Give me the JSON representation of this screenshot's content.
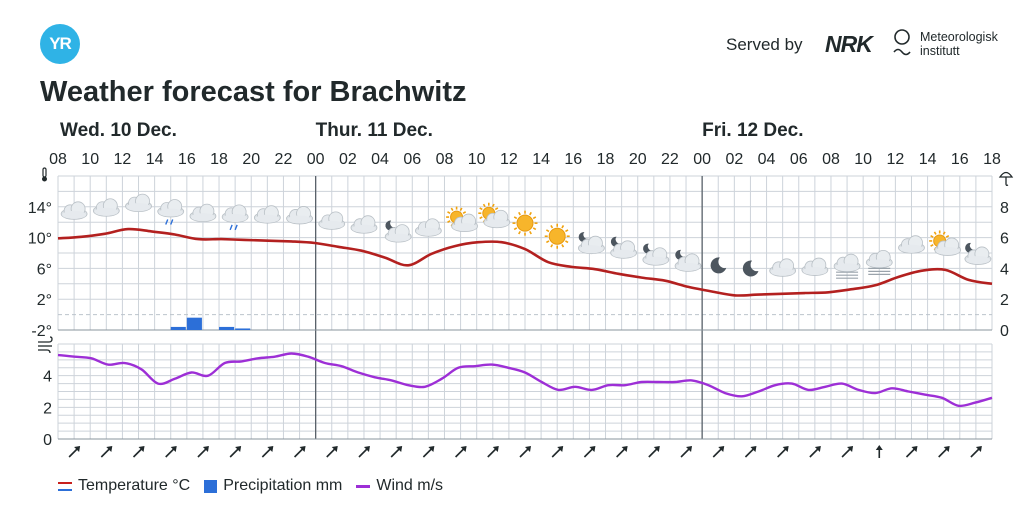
{
  "header": {
    "logo_text": "YR",
    "served_by": "Served by",
    "nrk_logo": "NRK",
    "met_line1": "Meteorologisk",
    "met_line2": "institutt"
  },
  "title": "Weather forecast for Brachwitz",
  "chart_data": {
    "type": "line",
    "days": [
      {
        "label": "Wed. 10 Dec.",
        "start_index": 0
      },
      {
        "label": "Thur. 11 Dec.",
        "start_index": 8
      },
      {
        "label": "Fri. 12 Dec.",
        "start_index": 20
      }
    ],
    "x_ticks": [
      "08",
      "10",
      "12",
      "14",
      "16",
      "18",
      "20",
      "22",
      "00",
      "02",
      "04",
      "06",
      "08",
      "10",
      "12",
      "14",
      "16",
      "18",
      "20",
      "22",
      "00",
      "02",
      "04",
      "06",
      "08",
      "10",
      "12",
      "14",
      "16",
      "18"
    ],
    "temp_ticks": [
      "14°",
      "10°",
      "6°",
      "2°",
      "-2°"
    ],
    "temp_ylim": [
      -2,
      18
    ],
    "precip_ticks": [
      "8",
      "6",
      "4",
      "2",
      "0"
    ],
    "precip_ylim": [
      0,
      10
    ],
    "wind_ticks": [
      "4",
      "2",
      "0"
    ],
    "wind_ylim": [
      0,
      6
    ],
    "temperature": [
      9.9,
      10.1,
      10.5,
      11.1,
      10.8,
      10.4,
      9.8,
      9.8,
      9.7,
      9.6,
      9.5,
      9.3,
      8.8,
      8.3,
      7.4,
      6.4,
      7.9,
      8.9,
      9.4,
      9.4,
      8.5,
      6.8,
      6.2,
      5.9,
      5.3,
      4.8,
      4.4,
      3.6,
      3.0,
      2.5,
      2.6,
      2.7,
      2.8,
      2.9,
      3.3,
      3.8,
      4.9,
      5.7,
      5.8,
      4.5,
      4.0
    ],
    "precipitation": [
      {
        "index": 3.5,
        "value": 0.2
      },
      {
        "index": 4.0,
        "value": 0.8
      },
      {
        "index": 5.0,
        "value": 0.2
      },
      {
        "index": 5.5,
        "value": 0.1
      }
    ],
    "wind": [
      5.3,
      5.2,
      5.1,
      4.7,
      4.8,
      4.4,
      3.5,
      3.8,
      4.2,
      4.0,
      4.8,
      4.9,
      5.1,
      5.2,
      5.4,
      5.2,
      4.8,
      4.6,
      4.2,
      3.9,
      3.7,
      3.4,
      3.3,
      3.8,
      4.5,
      4.6,
      4.7,
      4.5,
      4.2,
      3.6,
      3.1,
      3.3,
      3.1,
      3.4,
      3.4,
      3.6,
      3.6,
      3.6,
      3.7,
      3.4,
      2.9,
      2.7,
      3.0,
      3.4,
      3.5,
      3.1,
      3.3,
      3.5,
      3.1,
      2.9,
      3.2,
      3.0,
      2.8,
      2.6,
      2.1,
      2.3,
      2.6
    ],
    "weather_icons": [
      "cloudy",
      "cloudy",
      "cloudy",
      "cloudy-rain",
      "cloudy",
      "cloudy-rain",
      "cloudy",
      "cloudy",
      "cloudy",
      "cloudy",
      "night-cloudy",
      "cloudy",
      "sun-cloud",
      "sun-cloud",
      "sun",
      "sun",
      "night-cloudy",
      "night-cloudy",
      "night-cloudy",
      "night-cloudy",
      "moon",
      "moon",
      "cloudy",
      "cloudy",
      "fog",
      "fog",
      "cloudy",
      "sun-cloud",
      "night-cloudy"
    ],
    "wind_arrows": [
      "arrow-ne",
      "arrow-ne",
      "arrow-ne",
      "arrow-ne",
      "arrow-ne",
      "arrow-ne",
      "arrow-ne",
      "arrow-ne",
      "arrow-ne",
      "arrow-ne",
      "arrow-ne",
      "arrow-ne",
      "arrow-ne",
      "arrow-ne",
      "arrow-ne",
      "arrow-ne",
      "arrow-ne",
      "arrow-ne",
      "arrow-ne",
      "arrow-ne",
      "arrow-ne",
      "arrow-ne",
      "arrow-ne",
      "arrow-ne",
      "arrow-ne",
      "arrow-n",
      "arrow-ne",
      "arrow-ne",
      "arrow-ne"
    ],
    "legend": [
      {
        "label": "Temperature °C",
        "color": "#b3201f"
      },
      {
        "label": "Precipitation mm",
        "color": "#2c6fd8"
      },
      {
        "label": "Wind m/s",
        "color": "#9d2fd6"
      }
    ]
  }
}
